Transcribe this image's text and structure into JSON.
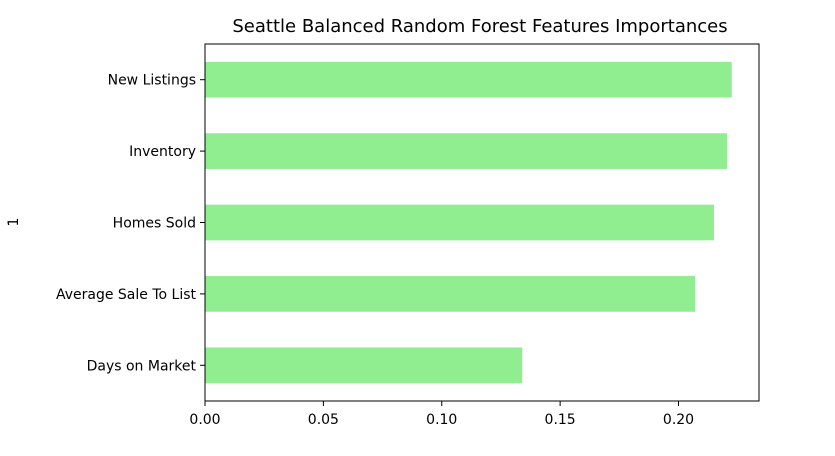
{
  "chart_data": {
    "type": "bar",
    "orientation": "horizontal",
    "title": "Seattle Balanced Random Forest Features Importances",
    "xlabel": "",
    "ylabel": "1",
    "categories": [
      "New Listings",
      "Inventory",
      "Homes Sold",
      "Average Sale To List",
      "Days on Market"
    ],
    "values": [
      0.2225,
      0.2205,
      0.215,
      0.207,
      0.134
    ],
    "xlim": [
      0.0,
      0.234
    ],
    "xticks": [
      "0.00",
      "0.05",
      "0.10",
      "0.15",
      "0.20"
    ],
    "bar_color": "#90ee90",
    "grid": false,
    "legend": "none"
  }
}
